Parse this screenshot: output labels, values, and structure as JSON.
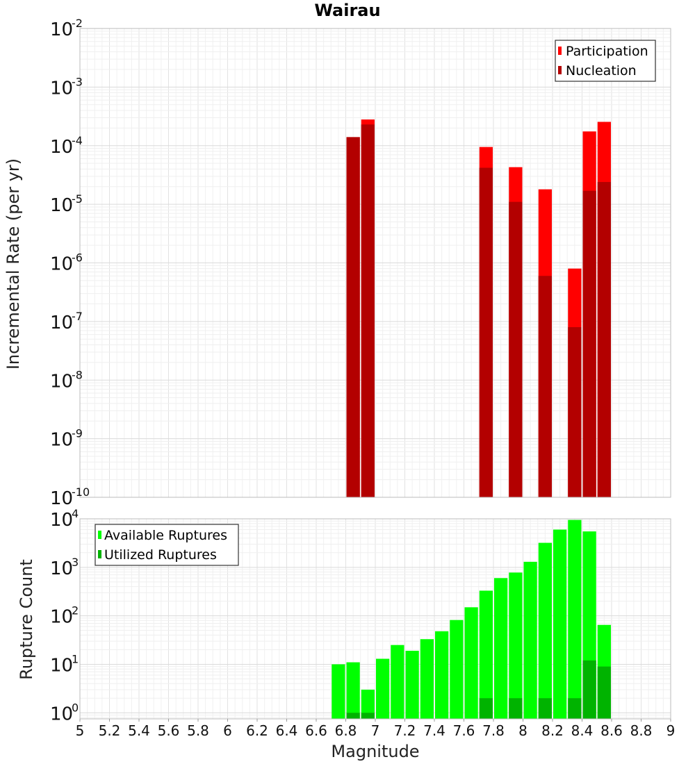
{
  "chart_data": [
    {
      "type": "bar",
      "title": "Wairau",
      "xlabel": "",
      "ylabel": "Incremental Rate (per yr)",
      "yscale": "log",
      "ylim": [
        1e-10,
        0.01
      ],
      "xlim": [
        5,
        9
      ],
      "grid": true,
      "legend_position": "top-right",
      "x": [
        6.75,
        6.85,
        6.95,
        7.05,
        7.15,
        7.25,
        7.35,
        7.45,
        7.55,
        7.65,
        7.75,
        7.85,
        7.95,
        8.05,
        8.15,
        8.25,
        8.35,
        8.45,
        8.55
      ],
      "series": [
        {
          "name": "Participation",
          "color": "#ff0000",
          "values": [
            null,
            0.00014,
            0.00028,
            null,
            null,
            null,
            null,
            null,
            null,
            null,
            9.5e-05,
            null,
            4.3e-05,
            null,
            1.8e-05,
            null,
            8e-07,
            0.000175,
            0.000255
          ]
        },
        {
          "name": "Nucleation",
          "color": "#b30000",
          "values": [
            null,
            0.00014,
            0.00023,
            null,
            null,
            null,
            null,
            null,
            null,
            null,
            4.2e-05,
            null,
            1.1e-05,
            null,
            6e-07,
            null,
            8e-08,
            1.7e-05,
            2.4e-05
          ]
        }
      ]
    },
    {
      "type": "bar",
      "title": "",
      "xlabel": "Magnitude",
      "ylabel": "Rupture Count",
      "yscale": "log",
      "ylim": [
        0.75,
        10000
      ],
      "xlim": [
        5,
        9
      ],
      "grid": true,
      "legend_position": "top-left",
      "x_ticks": [
        "5",
        "5.2",
        "5.4",
        "5.6",
        "5.8",
        "6",
        "6.2",
        "6.4",
        "6.6",
        "6.8",
        "7",
        "7.2",
        "7.4",
        "7.6",
        "7.8",
        "8",
        "8.2",
        "8.4",
        "8.6",
        "8.8",
        "9"
      ],
      "x": [
        6.75,
        6.85,
        6.95,
        7.05,
        7.15,
        7.25,
        7.35,
        7.45,
        7.55,
        7.65,
        7.75,
        7.85,
        7.95,
        8.05,
        8.15,
        8.25,
        8.35,
        8.45,
        8.55
      ],
      "series": [
        {
          "name": "Available Ruptures",
          "color": "#00ff00",
          "values": [
            10,
            11,
            3,
            13,
            25,
            19,
            33,
            48,
            82,
            150,
            330,
            600,
            780,
            1300,
            3200,
            6000,
            9500,
            5500,
            65
          ]
        },
        {
          "name": "Utilized Ruptures",
          "color": "#00b300",
          "values": [
            null,
            1,
            1,
            null,
            null,
            null,
            null,
            null,
            null,
            null,
            2,
            null,
            2,
            null,
            2,
            null,
            2,
            12,
            9
          ]
        }
      ]
    }
  ]
}
